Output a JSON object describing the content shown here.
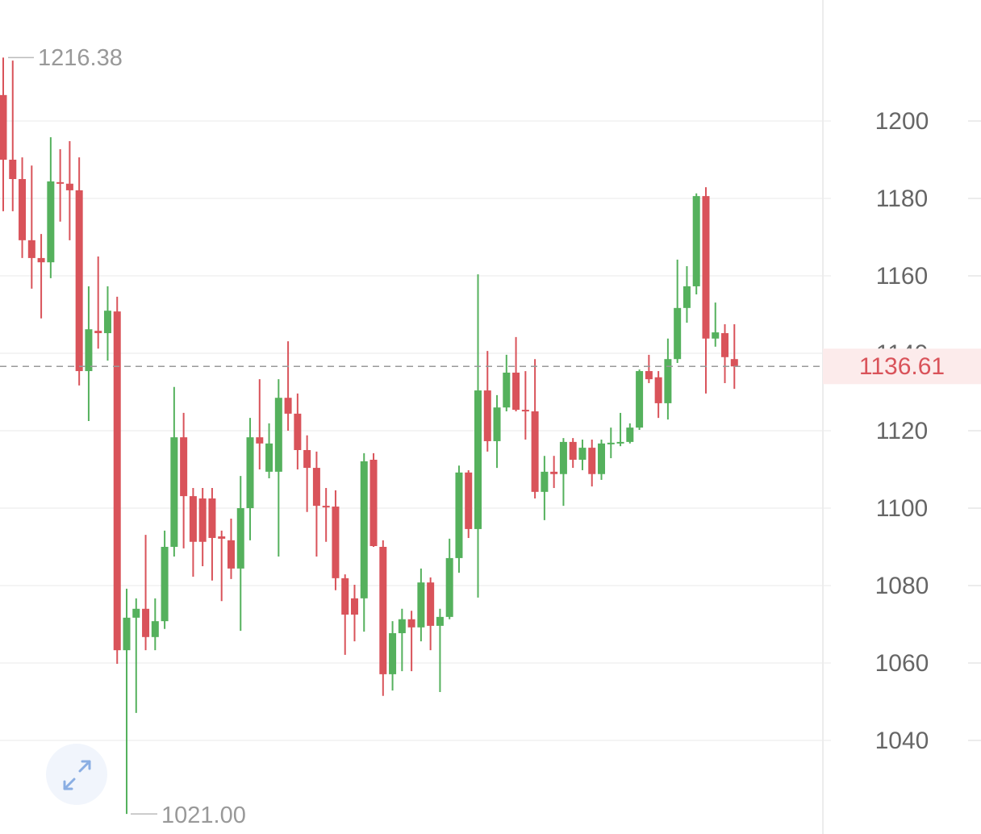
{
  "chart_data": {
    "type": "candlestick",
    "up_color": "#55b15d",
    "down_color": "#d9535a",
    "open": [
      1206.7,
      1190.0,
      1185.0,
      1169.2,
      1164.6,
      1163.5,
      1184.2,
      1183.8,
      1182.1,
      1135.4,
      1145.8,
      1145.2,
      1150.8,
      1063.3,
      1071.7,
      1074.0,
      1066.7,
      1070.8,
      1090.0,
      1118.3,
      1103.1,
      1102.5,
      1102.5,
      1092.7,
      1091.7,
      1084.4,
      1100.0,
      1118.3,
      1109.4,
      1109.4,
      1128.5,
      1124.4,
      1115.0,
      1110.4,
      1100.6,
      1100.4,
      1081.9,
      1076.7,
      1076.7,
      1112.5,
      1090.0,
      1057.1,
      1067.7,
      1071.3,
      1069.2,
      1080.8,
      1069.6,
      1071.9,
      1087.1,
      1109.2,
      1094.6,
      1130.4,
      1117.3,
      1126.0,
      1135.0,
      1125.4,
      1125.0,
      1104.2,
      1109.4,
      1108.8,
      1117.1,
      1112.5,
      1115.6,
      1108.8,
      1116.5,
      1116.7,
      1117.1,
      1120.8,
      1135.4,
      1133.8,
      1127.1,
      1138.5,
      1151.7,
      1157.3,
      1180.6,
      1143.8,
      1145.2,
      1138.5
    ],
    "high": [
      1216.38,
      1215.6,
      1190.6,
      1188.5,
      1170.8,
      1195.8,
      1192.7,
      1194.8,
      1190.6,
      1157.3,
      1165.0,
      1157.3,
      1154.6,
      1079.2,
      1076.7,
      1093.1,
      1076.7,
      1094.2,
      1131.3,
      1124.6,
      1105.2,
      1105.2,
      1105.2,
      1094.2,
      1097.3,
      1108.3,
      1123.3,
      1133.3,
      1121.9,
      1133.3,
      1143.1,
      1129.6,
      1118.8,
      1114.6,
      1105.2,
      1104.6,
      1082.9,
      1080.2,
      1114.2,
      1114.2,
      1091.7,
      1070.8,
      1074.0,
      1073.5,
      1084.4,
      1082.1,
      1074.0,
      1092.1,
      1111.0,
      1109.8,
      1160.4,
      1140.6,
      1129.2,
      1139.6,
      1144.2,
      1135.4,
      1138.5,
      1113.5,
      1113.5,
      1118.1,
      1118.1,
      1117.7,
      1117.7,
      1117.7,
      1120.8,
      1124.6,
      1121.9,
      1135.8,
      1139.6,
      1135.4,
      1143.8,
      1164.2,
      1162.5,
      1181.3,
      1182.9,
      1153.1,
      1147.5,
      1147.5
    ],
    "low": [
      1176.7,
      1176.7,
      1164.6,
      1156.7,
      1149.0,
      1159.4,
      1174.0,
      1169.2,
      1131.7,
      1122.5,
      1141.2,
      1138.1,
      1059.8,
      1021.0,
      1047.1,
      1063.3,
      1063.3,
      1068.8,
      1087.5,
      1089.6,
      1082.3,
      1085.0,
      1081.3,
      1076.0,
      1081.7,
      1068.3,
      1091.7,
      1110.0,
      1107.7,
      1087.5,
      1120.0,
      1110.0,
      1099.0,
      1087.5,
      1091.3,
      1078.8,
      1062.1,
      1065.6,
      1068.1,
      1090.0,
      1051.5,
      1052.9,
      1057.9,
      1057.9,
      1065.6,
      1063.3,
      1052.5,
      1071.3,
      1083.3,
      1092.3,
      1076.9,
      1114.6,
      1110.4,
      1125.0,
      1125.0,
      1117.7,
      1102.5,
      1096.9,
      1105.2,
      1100.6,
      1110.4,
      1109.8,
      1105.6,
      1107.3,
      1112.9,
      1116.0,
      1116.7,
      1120.2,
      1132.3,
      1123.3,
      1122.9,
      1137.5,
      1147.9,
      1155.2,
      1129.6,
      1141.7,
      1132.3,
      1130.8
    ],
    "close": [
      1190.0,
      1185.0,
      1169.2,
      1164.6,
      1163.5,
      1184.4,
      1183.8,
      1182.1,
      1135.4,
      1146.2,
      1145.2,
      1151.0,
      1063.3,
      1071.7,
      1074.0,
      1066.7,
      1070.8,
      1090.0,
      1118.3,
      1103.1,
      1091.3,
      1091.3,
      1092.3,
      1092.1,
      1084.4,
      1100.0,
      1118.3,
      1116.7,
      1116.7,
      1128.5,
      1124.4,
      1115.0,
      1110.4,
      1100.6,
      1100.2,
      1081.9,
      1072.5,
      1072.5,
      1112.1,
      1090.2,
      1057.1,
      1067.7,
      1071.3,
      1069.2,
      1080.8,
      1069.6,
      1071.9,
      1087.1,
      1109.2,
      1094.6,
      1130.4,
      1117.3,
      1126.0,
      1135.0,
      1125.4,
      1125.0,
      1104.2,
      1109.4,
      1108.8,
      1117.1,
      1112.5,
      1115.6,
      1108.8,
      1116.7,
      1116.9,
      1117.1,
      1120.8,
      1135.4,
      1133.3,
      1127.1,
      1138.5,
      1151.7,
      1157.3,
      1180.6,
      1143.8,
      1145.4,
      1139.0,
      1136.61
    ],
    "ylim": [
      1015.83,
      1231.25
    ],
    "yticks": [
      1040,
      1060,
      1080,
      1100,
      1120,
      1140,
      1160,
      1180,
      1200
    ],
    "grid": true,
    "high_marker": 1216.38,
    "low_marker": {
      "value": 1021,
      "label": "1021.00"
    },
    "last_price": 1136.61
  }
}
